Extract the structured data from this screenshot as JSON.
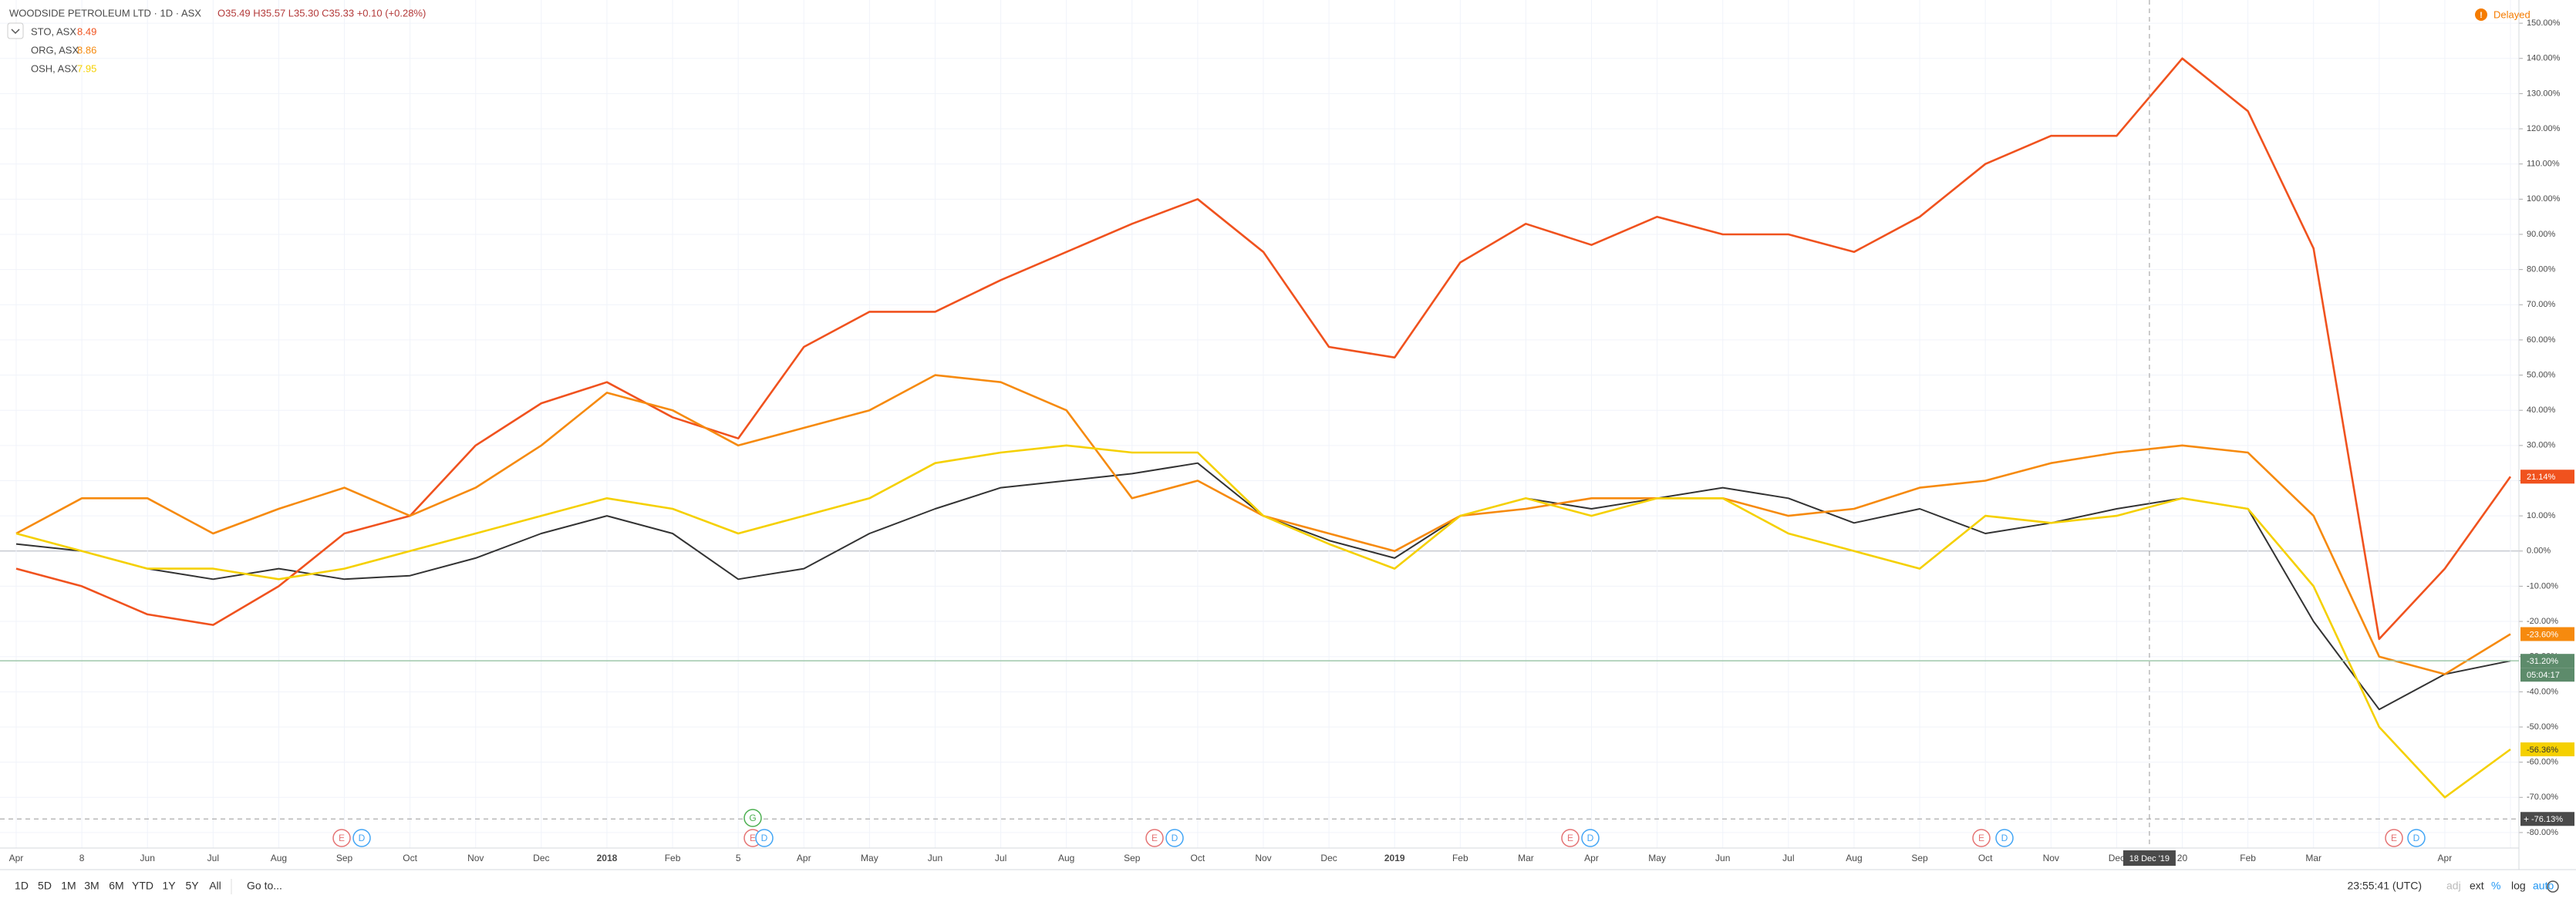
{
  "chart_data": {
    "type": "line",
    "legend_title": "WOODSIDE PETROLEUM LTD · 1D · ASX",
    "ohlc": "O35.49 H35.57 L35.30 C35.33 +0.10 (+0.28%)",
    "status": "Delayed",
    "categories": [
      "Apr",
      "8",
      "Jun",
      "Jul",
      "Aug",
      "Sep",
      "Oct",
      "Nov",
      "Dec",
      "2018",
      "Feb",
      "5",
      "Apr",
      "May",
      "Jun",
      "Jul",
      "Aug",
      "Sep",
      "Oct",
      "Nov",
      "Dec",
      "2019",
      "Feb",
      "Mar",
      "Apr",
      "May",
      "Jun",
      "Jul",
      "Aug",
      "Sep",
      "Oct",
      "Nov",
      "Dec",
      "20",
      "Feb",
      "Mar",
      null,
      "Apr",
      null
    ],
    "series": [
      {
        "name": "WOODSIDE PETROLEUM LTD",
        "color": "#333333",
        "legend": false,
        "values": [
          2,
          0,
          -5,
          -8,
          -5,
          -8,
          -7,
          -2,
          5,
          10,
          5,
          -8,
          -5,
          5,
          12,
          18,
          20,
          22,
          25,
          10,
          3,
          -2,
          10,
          15,
          12,
          15,
          18,
          15,
          8,
          12,
          5,
          8,
          12,
          15,
          12,
          -20,
          -45,
          -35,
          -31.2
        ],
        "last": {
          "value": -31.2,
          "label": "-31.20%"
        },
        "badge": "#5d8b6b"
      },
      {
        "name": "STO, ASX",
        "legend_value": 8.49,
        "color": "#f0521e",
        "values": [
          -5,
          -10,
          -18,
          -21,
          -10,
          5,
          10,
          30,
          42,
          48,
          38,
          32,
          58,
          68,
          68,
          77,
          85,
          93,
          100,
          85,
          58,
          55,
          82,
          93,
          87,
          95,
          90,
          90,
          85,
          95,
          110,
          118,
          118,
          140,
          125,
          86,
          -25,
          -5,
          21.14
        ],
        "last": {
          "value": 21.14,
          "label": "21.14%"
        },
        "badge": "#f0521e"
      },
      {
        "name": "ORG, ASX",
        "legend_value": 8.86,
        "color": "#f68a0e",
        "values": [
          5,
          15,
          15,
          5,
          12,
          18,
          10,
          18,
          30,
          45,
          40,
          30,
          35,
          40,
          50,
          48,
          40,
          15,
          20,
          10,
          5,
          0,
          10,
          12,
          15,
          15,
          15,
          10,
          12,
          18,
          20,
          25,
          28,
          30,
          28,
          10,
          -30,
          -35,
          -23.6
        ],
        "last": {
          "value": -23.6,
          "label": "-23.60%"
        },
        "badge": "#f68a0e"
      },
      {
        "name": "OSH, ASX",
        "legend_value": 7.95,
        "color": "#f5d000",
        "values": [
          5,
          0,
          -5,
          -5,
          -8,
          -5,
          0,
          5,
          10,
          15,
          12,
          5,
          10,
          15,
          25,
          28,
          30,
          28,
          28,
          10,
          2,
          -5,
          10,
          15,
          10,
          15,
          15,
          5,
          0,
          -5,
          10,
          8,
          10,
          15,
          12,
          -10,
          -50,
          -70,
          -56.36
        ],
        "last": {
          "value": -56.36,
          "label": "-56.36%"
        },
        "badge": "#f5d000"
      }
    ],
    "ylim": [
      -84.4,
      156.6
    ],
    "yticks": [
      {
        "value": 150,
        "label": "150.00%"
      },
      {
        "value": 140,
        "label": "140.00%"
      },
      {
        "value": 130,
        "label": "130.00%"
      },
      {
        "value": 120,
        "label": "120.00%"
      },
      {
        "value": 110,
        "label": "110.00%"
      },
      {
        "value": 100,
        "label": "100.00%"
      },
      {
        "value": 90,
        "label": "90.00%"
      },
      {
        "value": 80,
        "label": "80.00%"
      },
      {
        "value": 70,
        "label": "70.00%"
      },
      {
        "value": 60,
        "label": "60.00%"
      },
      {
        "value": 50,
        "label": "50.00%"
      },
      {
        "value": 40,
        "label": "40.00%"
      },
      {
        "value": 30,
        "label": "30.00%"
      },
      {
        "value": 20,
        "label": "20.00%"
      },
      {
        "value": 10,
        "label": "10.00%"
      },
      {
        "value": 0,
        "label": "0.00%"
      },
      {
        "value": -10,
        "label": "-10.00%"
      },
      {
        "value": -20,
        "label": "-20.00%"
      },
      {
        "value": -30,
        "label": "-30.00%"
      },
      {
        "value": -40,
        "label": "-40.00%"
      },
      {
        "value": -50,
        "label": "-50.00%"
      },
      {
        "value": -60,
        "label": "-60.00%"
      },
      {
        "value": -70,
        "label": "-70.00%"
      },
      {
        "value": -80,
        "label": "-80.00%"
      }
    ],
    "grid": true,
    "countdown": "05:04:17",
    "crosshair": {
      "x_label": "18 Dec '19",
      "y": {
        "value": -76.13,
        "label": "-76.13%"
      }
    },
    "event_markers": [
      "E",
      "D",
      "G",
      "E",
      "D",
      "E",
      "D",
      "E",
      "D",
      "E",
      "D",
      "E",
      "D"
    ]
  },
  "toolbar": {
    "ranges": [
      "1D",
      "5D",
      "1M",
      "3M",
      "6M",
      "YTD",
      "1Y",
      "5Y",
      "All"
    ],
    "goto": "Go to...",
    "time": "23:55:41 (UTC)",
    "options": [
      "adj",
      "ext",
      "%",
      "log",
      "auto"
    ]
  }
}
